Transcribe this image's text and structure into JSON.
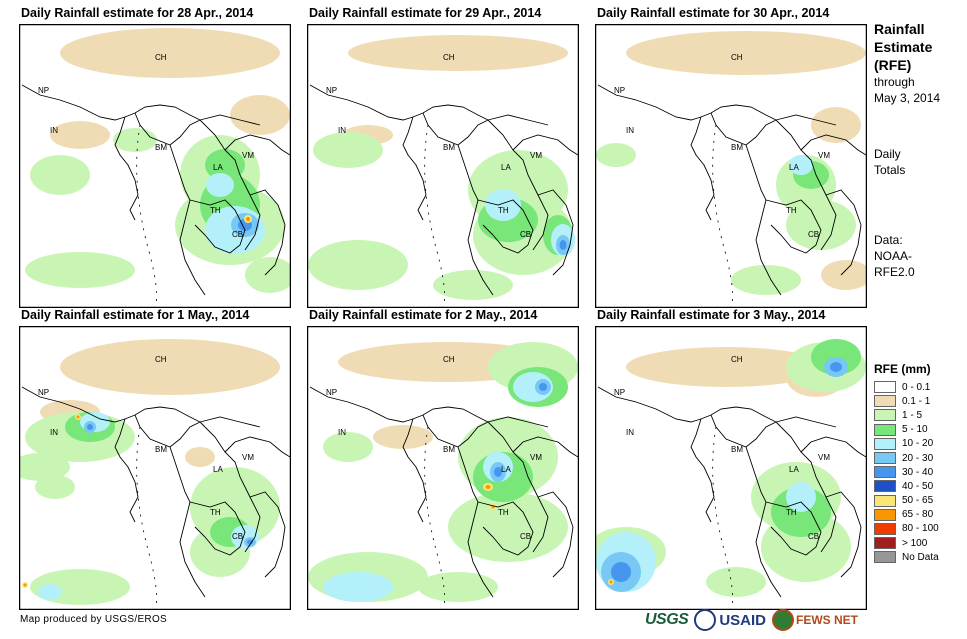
{
  "panels": [
    {
      "title": "Daily Rainfall estimate for 28 Apr., 2014"
    },
    {
      "title": "Daily Rainfall estimate for 29 Apr., 2014"
    },
    {
      "title": "Daily Rainfall estimate for 30 Apr., 2014"
    },
    {
      "title": "Daily Rainfall estimate for 1 May., 2014"
    },
    {
      "title": "Daily Rainfall estimate for 2 May., 2014"
    },
    {
      "title": "Daily Rainfall estimate for 3 May., 2014"
    }
  ],
  "map_labels": {
    "ch": "CH",
    "np": "NP",
    "in": "IN",
    "bm": "BM",
    "la": "LA",
    "vm": "VM",
    "th": "TH",
    "cb": "CB"
  },
  "sidebar": {
    "title_line1": "Rainfall",
    "title_line2": "Estimate",
    "title_line3": "(RFE)",
    "through": "through",
    "date": "May 3, 2014",
    "daily": "Daily",
    "totals": "Totals",
    "data_label": "Data:",
    "source_line1": "NOAA-",
    "source_line2": "RFE2.0"
  },
  "legend": {
    "title": "RFE (mm)",
    "items": [
      {
        "label": "0 - 0.1",
        "color": "#ffffff"
      },
      {
        "label": "0.1 - 1",
        "color": "#f0dcb4"
      },
      {
        "label": "1 - 5",
        "color": "#c8f5b4"
      },
      {
        "label": "5 - 10",
        "color": "#78e678"
      },
      {
        "label": "10 - 20",
        "color": "#b4f0fa"
      },
      {
        "label": "20 - 30",
        "color": "#78c8f5"
      },
      {
        "label": "30 - 40",
        "color": "#4696f0"
      },
      {
        "label": "40 - 50",
        "color": "#1e50c8"
      },
      {
        "label": "50 - 65",
        "color": "#fae678"
      },
      {
        "label": "65 - 80",
        "color": "#fa9600"
      },
      {
        "label": "80 - 100",
        "color": "#f03c00"
      },
      {
        "label": "> 100",
        "color": "#a01e1e"
      },
      {
        "label": "No Data",
        "color": "#969696"
      }
    ]
  },
  "credit": "Map produced by USGS/EROS",
  "logos": {
    "usgs": "USGS",
    "usaid": "USAID",
    "fews": "FEWS NET"
  }
}
